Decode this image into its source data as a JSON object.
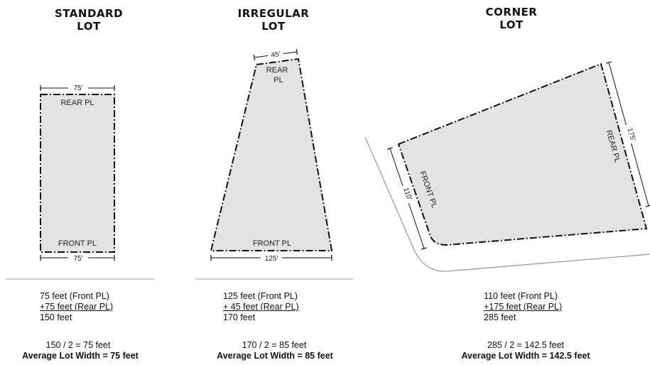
{
  "standard": {
    "title_line1": "STANDARD",
    "title_line2": "LOT",
    "rear_label": "REAR PL",
    "front_label": "FRONT PL",
    "rear_dim": "75'",
    "front_dim": "75'",
    "calc_front": "75 feet (Front PL)",
    "calc_rear": "+75 feet (Rear PL)",
    "calc_total": "150 feet",
    "calc_half": "150 / 2 = 75 feet",
    "average": "Average Lot Width = 75 feet"
  },
  "irregular": {
    "title_line1": "IRREGULAR",
    "title_line2": "LOT",
    "rear_label_1": "REAR",
    "rear_label_2": "PL",
    "front_label": "FRONT  PL",
    "rear_dim": "45'",
    "front_dim": "125'",
    "calc_front": "125 feet (Front PL)",
    "calc_rear": "+  45 feet (Rear PL)",
    "calc_total": "170 feet",
    "calc_half": "170 / 2 = 85 feet",
    "average": "Average Lot Width = 85 feet"
  },
  "corner": {
    "title_line1": "CORNER",
    "title_line2": "LOT",
    "front_label": "FRONT  PL",
    "rear_label": "REAR  PL",
    "front_dim": "110'",
    "rear_dim": "175'",
    "calc_front": "110 feet (Front PL)",
    "calc_rear": "+175 feet (Rear PL)",
    "calc_total": "285 feet",
    "calc_half": "285 / 2 = 142.5 feet",
    "average": "Average Lot Width = 142.5 feet"
  },
  "colors": {
    "lot_fill": "#e3e3e3",
    "line": "#111111",
    "street": "#9a9a9a"
  }
}
